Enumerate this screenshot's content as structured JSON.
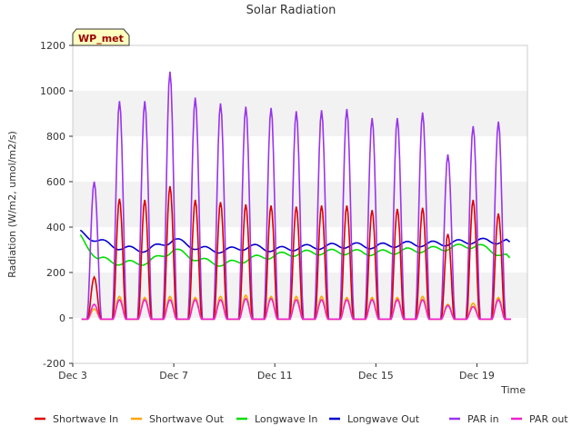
{
  "chart_data": {
    "type": "line",
    "title": "Solar Radiation",
    "xlabel": "Time",
    "ylabel": "Radiation (W/m2, umol/m2/s)",
    "station_label": "WP_met",
    "ylim": [
      -200,
      1200
    ],
    "yticks": [
      -200,
      0,
      200,
      400,
      600,
      800,
      1000,
      1200
    ],
    "xlim_days": [
      3,
      21
    ],
    "xticks": [
      {
        "day": 3,
        "label": "Dec 3"
      },
      {
        "day": 7,
        "label": "Dec 7"
      },
      {
        "day": 11,
        "label": "Dec 11"
      },
      {
        "day": 15,
        "label": "Dec 15"
      },
      {
        "day": 19,
        "label": "Dec 19"
      }
    ],
    "grid": "horizontal bands",
    "legend_position": "bottom",
    "series": [
      {
        "name": "Shortwave In",
        "color": "#dd0000",
        "daily_peaks": [
          {
            "day": 3.85,
            "value": 180
          },
          {
            "day": 4.85,
            "value": 525
          },
          {
            "day": 5.85,
            "value": 520
          },
          {
            "day": 6.85,
            "value": 580
          },
          {
            "day": 7.85,
            "value": 520
          },
          {
            "day": 8.85,
            "value": 510
          },
          {
            "day": 9.85,
            "value": 500
          },
          {
            "day": 10.85,
            "value": 495
          },
          {
            "day": 11.85,
            "value": 490
          },
          {
            "day": 12.85,
            "value": 495
          },
          {
            "day": 13.85,
            "value": 495
          },
          {
            "day": 14.85,
            "value": 475
          },
          {
            "day": 15.85,
            "value": 480
          },
          {
            "day": 16.85,
            "value": 485
          },
          {
            "day": 17.85,
            "value": 370
          },
          {
            "day": 18.85,
            "value": 520
          },
          {
            "day": 19.85,
            "value": 460
          }
        ]
      },
      {
        "name": "Shortwave Out",
        "color": "#ffa500",
        "daily_peaks": [
          {
            "day": 3.85,
            "value": 40
          },
          {
            "day": 4.85,
            "value": 95
          },
          {
            "day": 5.85,
            "value": 90
          },
          {
            "day": 6.85,
            "value": 95
          },
          {
            "day": 7.85,
            "value": 90
          },
          {
            "day": 8.85,
            "value": 95
          },
          {
            "day": 9.85,
            "value": 100
          },
          {
            "day": 10.85,
            "value": 95
          },
          {
            "day": 11.85,
            "value": 95
          },
          {
            "day": 12.85,
            "value": 95
          },
          {
            "day": 13.85,
            "value": 90
          },
          {
            "day": 14.85,
            "value": 90
          },
          {
            "day": 15.85,
            "value": 90
          },
          {
            "day": 16.85,
            "value": 95
          },
          {
            "day": 17.85,
            "value": 60
          },
          {
            "day": 18.85,
            "value": 65
          },
          {
            "day": 19.85,
            "value": 90
          }
        ]
      },
      {
        "name": "Longwave In",
        "color": "#00dd00",
        "daily_values": [
          {
            "day": 3.3,
            "value": 355
          },
          {
            "day": 4.0,
            "value": 260
          },
          {
            "day": 5.0,
            "value": 240
          },
          {
            "day": 6.0,
            "value": 245
          },
          {
            "day": 7.0,
            "value": 300
          },
          {
            "day": 8.0,
            "value": 255
          },
          {
            "day": 9.0,
            "value": 235
          },
          {
            "day": 10.0,
            "value": 260
          },
          {
            "day": 11.0,
            "value": 275
          },
          {
            "day": 12.0,
            "value": 285
          },
          {
            "day": 13.0,
            "value": 290
          },
          {
            "day": 14.0,
            "value": 290
          },
          {
            "day": 15.0,
            "value": 285
          },
          {
            "day": 16.0,
            "value": 295
          },
          {
            "day": 17.0,
            "value": 300
          },
          {
            "day": 18.0,
            "value": 310
          },
          {
            "day": 19.0,
            "value": 320
          },
          {
            "day": 20.3,
            "value": 265
          }
        ]
      },
      {
        "name": "Longwave Out",
        "color": "#0000cc",
        "daily_values": [
          {
            "day": 3.3,
            "value": 375
          },
          {
            "day": 4.0,
            "value": 340
          },
          {
            "day": 5.0,
            "value": 305
          },
          {
            "day": 6.0,
            "value": 300
          },
          {
            "day": 7.0,
            "value": 345
          },
          {
            "day": 8.0,
            "value": 305
          },
          {
            "day": 9.0,
            "value": 295
          },
          {
            "day": 10.0,
            "value": 315
          },
          {
            "day": 11.0,
            "value": 300
          },
          {
            "day": 12.0,
            "value": 310
          },
          {
            "day": 13.0,
            "value": 315
          },
          {
            "day": 14.0,
            "value": 320
          },
          {
            "day": 15.0,
            "value": 315
          },
          {
            "day": 16.0,
            "value": 325
          },
          {
            "day": 17.0,
            "value": 325
          },
          {
            "day": 18.0,
            "value": 330
          },
          {
            "day": 19.0,
            "value": 340
          },
          {
            "day": 20.3,
            "value": 335
          }
        ]
      },
      {
        "name": "PAR in",
        "color": "#9933ee",
        "daily_peaks": [
          {
            "day": 3.85,
            "value": 600
          },
          {
            "day": 4.85,
            "value": 955
          },
          {
            "day": 5.85,
            "value": 955
          },
          {
            "day": 6.85,
            "value": 1085
          },
          {
            "day": 7.85,
            "value": 970
          },
          {
            "day": 8.85,
            "value": 945
          },
          {
            "day": 9.85,
            "value": 930
          },
          {
            "day": 10.85,
            "value": 925
          },
          {
            "day": 11.85,
            "value": 910
          },
          {
            "day": 12.85,
            "value": 915
          },
          {
            "day": 13.85,
            "value": 920
          },
          {
            "day": 14.85,
            "value": 880
          },
          {
            "day": 15.85,
            "value": 880
          },
          {
            "day": 16.85,
            "value": 905
          },
          {
            "day": 17.85,
            "value": 720
          },
          {
            "day": 18.85,
            "value": 845
          },
          {
            "day": 19.85,
            "value": 865
          }
        ]
      },
      {
        "name": "PAR out",
        "color": "#ee22cc",
        "daily_peaks": [
          {
            "day": 3.85,
            "value": 60
          },
          {
            "day": 4.85,
            "value": 80
          },
          {
            "day": 5.85,
            "value": 80
          },
          {
            "day": 6.85,
            "value": 80
          },
          {
            "day": 7.85,
            "value": 80
          },
          {
            "day": 8.85,
            "value": 80
          },
          {
            "day": 9.85,
            "value": 85
          },
          {
            "day": 10.85,
            "value": 85
          },
          {
            "day": 11.85,
            "value": 80
          },
          {
            "day": 12.85,
            "value": 80
          },
          {
            "day": 13.85,
            "value": 80
          },
          {
            "day": 14.85,
            "value": 80
          },
          {
            "day": 15.85,
            "value": 80
          },
          {
            "day": 16.85,
            "value": 80
          },
          {
            "day": 17.85,
            "value": 55
          },
          {
            "day": 18.85,
            "value": 50
          },
          {
            "day": 19.85,
            "value": 80
          }
        ]
      }
    ]
  }
}
